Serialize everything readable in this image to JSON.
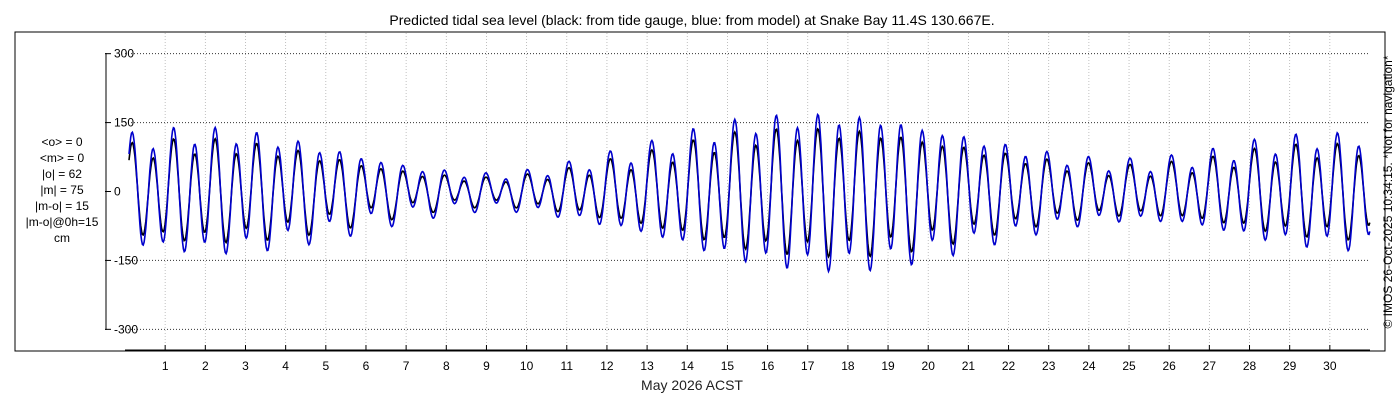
{
  "chart_data": {
    "type": "line",
    "title": "Predicted tidal sea level (black: from tide gauge, blue: from model) at Snake Bay 11.4S 130.667E.",
    "xlabel": "May 2026 ACST",
    "ylabel": "",
    "xlim": [
      0,
      31
    ],
    "ylim": [
      -345,
      345
    ],
    "y_ticks": [
      300,
      150,
      0,
      -150,
      -300
    ],
    "x_ticks": [
      1,
      2,
      3,
      4,
      5,
      6,
      7,
      8,
      9,
      10,
      11,
      12,
      13,
      14,
      15,
      16,
      17,
      18,
      19,
      20,
      21,
      22,
      23,
      24,
      25,
      26,
      27,
      28,
      29,
      30
    ],
    "grid": "dotted",
    "stats": [
      "<o> = 0",
      "<m> = 0",
      "|o| = 62",
      "|m| = 75",
      "|m-o| = 15",
      "|m-o|@0h=15",
      "cm"
    ],
    "copyright": "© IMOS 26-Oct-2025 10:34:15. *Not for navigation*",
    "series": [
      {
        "color": "#000000",
        "description_source": "tide gauge",
        "semidiurnal_amplitude_cm": [
          85,
          95,
          100,
          95,
          85,
          70,
          55,
          40,
          30,
          25,
          30,
          40,
          55,
          70,
          90,
          110,
          120,
          125,
          125,
          120,
          105,
          90,
          75,
          60,
          50,
          45,
          50,
          60,
          75,
          85,
          90
        ],
        "diurnal_amplitude_cm": [
          20,
          20,
          20,
          20,
          20,
          20,
          18,
          15,
          12,
          10,
          10,
          12,
          15,
          18,
          20,
          20,
          20,
          20,
          20,
          20,
          20,
          18,
          15,
          15,
          15,
          15,
          15,
          15,
          18,
          20,
          20
        ]
      },
      {
        "color": "#0000cc",
        "description_source": "model",
        "semidiurnal_amplitude_cm": [
          105,
          118,
          123,
          118,
          105,
          88,
          70,
          52,
          40,
          33,
          38,
          52,
          70,
          88,
          112,
          135,
          148,
          155,
          155,
          148,
          130,
          112,
          93,
          75,
          62,
          57,
          62,
          75,
          93,
          105,
          112
        ],
        "diurnal_amplitude_cm": [
          22,
          22,
          22,
          22,
          22,
          22,
          20,
          17,
          14,
          12,
          12,
          14,
          17,
          20,
          22,
          22,
          22,
          22,
          22,
          22,
          22,
          20,
          17,
          17,
          17,
          17,
          17,
          17,
          20,
          22,
          22
        ]
      }
    ]
  }
}
